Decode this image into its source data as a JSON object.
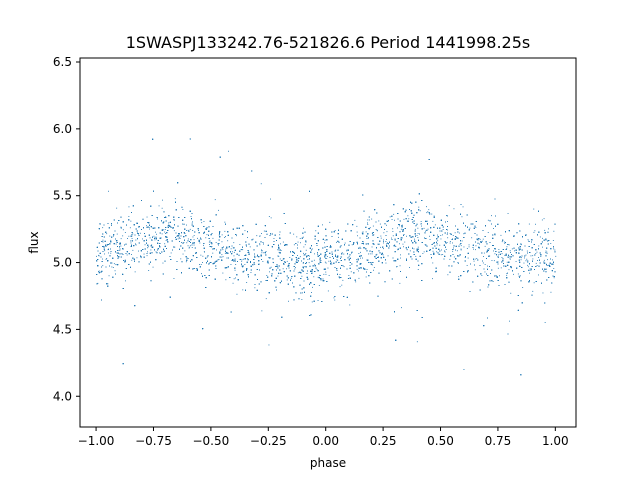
{
  "chart_data": {
    "type": "scatter",
    "title": "1SWASPJ133242.76-521826.6 Period 1441998.25s",
    "xlabel": "phase",
    "ylabel": "flux",
    "xlim": [
      -1.07,
      1.09
    ],
    "ylim": [
      3.77,
      6.53
    ],
    "xticks": [
      -1.0,
      -0.75,
      -0.5,
      -0.25,
      0.0,
      0.25,
      0.5,
      0.75,
      1.0
    ],
    "xtick_labels": [
      "−1.00",
      "−0.75",
      "−0.50",
      "−0.25",
      "0.00",
      "0.25",
      "0.50",
      "0.75",
      "1.00"
    ],
    "yticks": [
      4.0,
      4.5,
      5.0,
      5.5,
      6.0,
      6.5
    ],
    "ytick_labels": [
      "4.0",
      "4.5",
      "5.0",
      "5.5",
      "6.0",
      "6.5"
    ],
    "grid": false,
    "point_color": "#1f77b4",
    "series": [
      {
        "x": [
          -1.0,
          -0.95,
          -0.9,
          -0.85,
          -0.8,
          -0.75,
          -0.7,
          -0.65,
          -0.6,
          -0.55,
          -0.5,
          -0.45,
          -0.4,
          -0.35,
          -0.3,
          -0.25,
          -0.2,
          -0.15,
          -0.1,
          -0.05,
          0.0,
          0.05,
          0.1,
          0.15,
          0.2,
          0.25,
          0.3,
          0.35,
          0.4,
          0.45,
          0.5,
          0.55,
          0.6,
          0.65,
          0.7,
          0.75,
          0.8,
          0.85,
          0.9,
          0.95,
          1.0
        ],
        "y": [
          5.05,
          5.1,
          5.12,
          5.15,
          5.18,
          5.2,
          5.22,
          5.2,
          5.18,
          5.15,
          5.12,
          5.1,
          5.08,
          5.06,
          5.05,
          5.04,
          5.03,
          5.02,
          5.0,
          4.99,
          5.0,
          5.02,
          5.05,
          5.08,
          5.12,
          5.15,
          5.18,
          5.2,
          5.22,
          5.2,
          5.18,
          5.15,
          5.12,
          5.1,
          5.08,
          5.06,
          5.05,
          5.04,
          5.03,
          5.02,
          5.05
        ]
      }
    ]
  }
}
